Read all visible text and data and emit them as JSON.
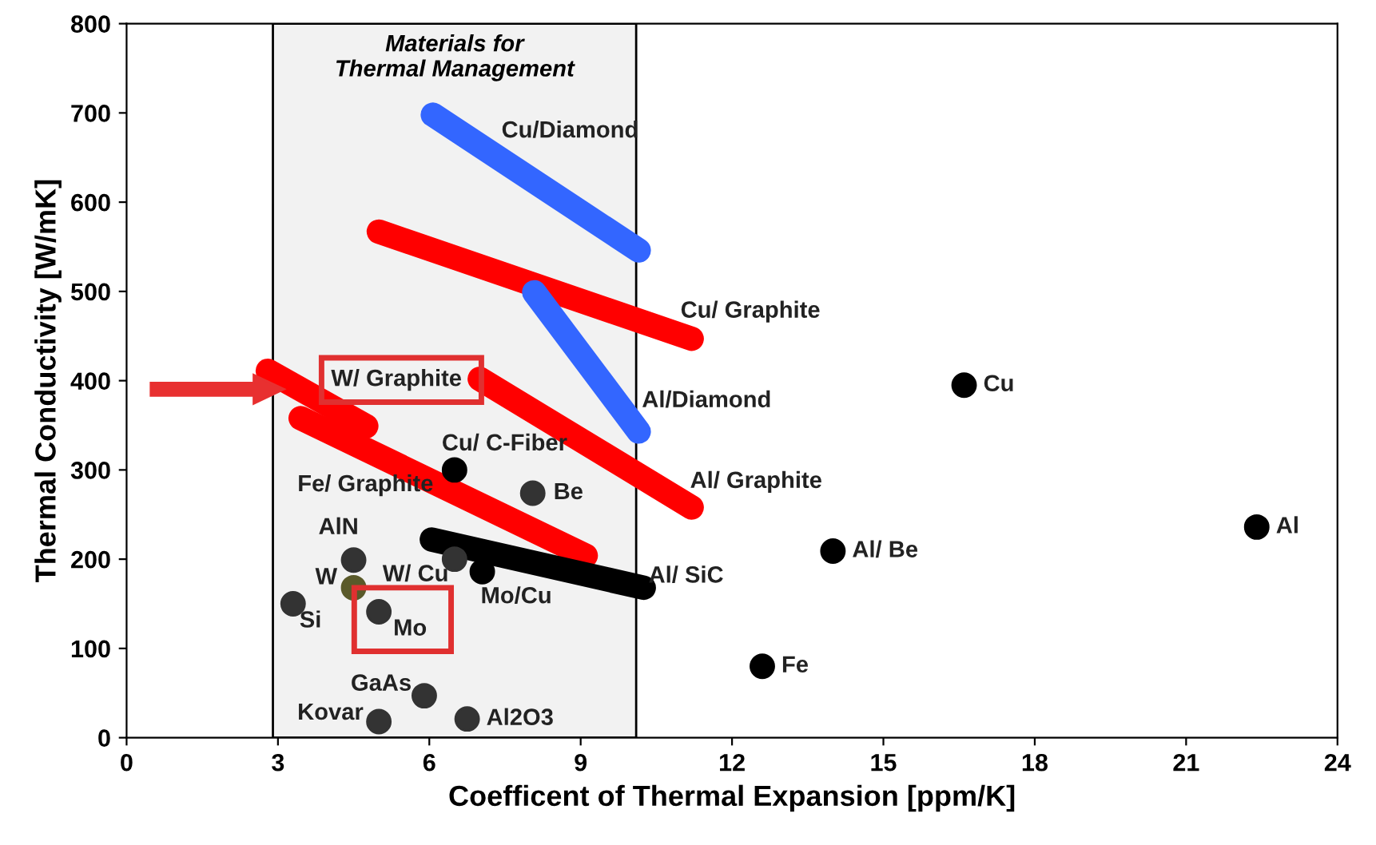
{
  "chart_data": {
    "type": "scatter",
    "xlabel": "Coefficent of Thermal Expansion [ppm/K]",
    "ylabel": "Thermal Conductivity [W/mK]",
    "xlim": [
      0,
      24
    ],
    "xticks": [
      0,
      3,
      6,
      9,
      12,
      15,
      18,
      21,
      24
    ],
    "ylim": [
      0,
      800
    ],
    "yticks": [
      0,
      100,
      200,
      300,
      400,
      500,
      600,
      700,
      800
    ],
    "grid": false,
    "legend": false,
    "bands": [
      {
        "axis": "x",
        "from": 2.9,
        "to": 10.1,
        "label": "Materials for\nThermal Management",
        "color": "#f2f2f2"
      }
    ],
    "series": [
      {
        "marker": "circle",
        "x": [
          16.6,
          22.4,
          14.0,
          12.6,
          6.5,
          8.05,
          4.5,
          4.5,
          6.5,
          7.05,
          3.3,
          5.0,
          5.9,
          5.0,
          6.75
        ],
        "values": [
          395,
          236,
          209,
          80,
          300,
          274,
          199,
          168,
          200,
          186,
          150,
          141,
          47,
          18,
          21
        ],
        "colors": [
          "#000000",
          "#000000",
          "#000000",
          "#000000",
          "#000000",
          "#333333",
          "#333333",
          "#5a5a2a",
          "#333333",
          "#000000",
          "#333333",
          "#333333",
          "#333333",
          "#333333",
          "#333333"
        ]
      },
      {
        "type": "line",
        "x": [
          6.07,
          10.15
        ],
        "values": [
          698,
          546
        ],
        "color": "#3366ff"
      },
      {
        "type": "line",
        "x": [
          5.0,
          11.2
        ],
        "values": [
          567,
          447
        ],
        "color": "#ff0000"
      },
      {
        "type": "line",
        "x": [
          8.08,
          10.15
        ],
        "values": [
          499,
          343
        ],
        "color": "#3366ff"
      },
      {
        "type": "line",
        "x": [
          2.8,
          4.75
        ],
        "values": [
          411,
          349
        ],
        "color": "#ff0000"
      },
      {
        "type": "line",
        "x": [
          7.0,
          11.2
        ],
        "values": [
          402,
          258
        ],
        "color": "#ff0000"
      },
      {
        "type": "line",
        "x": [
          3.45,
          9.1
        ],
        "values": [
          358,
          204
        ],
        "color": "#ff0000"
      },
      {
        "type": "line",
        "x": [
          6.05,
          10.25
        ],
        "values": [
          222,
          168
        ],
        "color": "#000000"
      }
    ],
    "annotations": [
      {
        "text": "Cu/Diamond",
        "x": 7.43,
        "y": 647
      },
      {
        "text": "Cu/ Graphite",
        "x": 11.2,
        "y": 447
      },
      {
        "text": "Al/Diamond",
        "x": 10.15,
        "y": 343
      },
      {
        "text": "W/ Graphite",
        "x": 4.75,
        "y": 349
      },
      {
        "text": "Al/ Graphite",
        "x": 11.2,
        "y": 258
      },
      {
        "text": "Fe/ Graphite",
        "x": 3.45,
        "y": 358
      },
      {
        "text": "Cu/ C-Fiber",
        "x": 6.5,
        "y": 300
      },
      {
        "text": "Be",
        "x": 8.05,
        "y": 274
      },
      {
        "text": "AlN",
        "x": 4.5,
        "y": 199
      },
      {
        "text": "W",
        "x": 4.5,
        "y": 168
      },
      {
        "text": "W/ Cu",
        "x": 6.5,
        "y": 200
      },
      {
        "text": "Mo/Cu",
        "x": 7.05,
        "y": 186
      },
      {
        "text": "Al/ SiC",
        "x": 10.25,
        "y": 168
      },
      {
        "text": "Si",
        "x": 3.3,
        "y": 150
      },
      {
        "text": "Mo",
        "x": 5.0,
        "y": 141
      },
      {
        "text": "GaAs",
        "x": 5.9,
        "y": 47
      },
      {
        "text": "Kovar",
        "x": 5.0,
        "y": 18
      },
      {
        "text": "Al2O3",
        "x": 6.75,
        "y": 21
      },
      {
        "text": "Cu",
        "x": 16.6,
        "y": 395
      },
      {
        "text": "Al",
        "x": 22.4,
        "y": 236
      },
      {
        "text": "Al/ Be",
        "x": 14.0,
        "y": 209
      },
      {
        "text": "Fe",
        "x": 12.6,
        "y": 80
      }
    ]
  }
}
